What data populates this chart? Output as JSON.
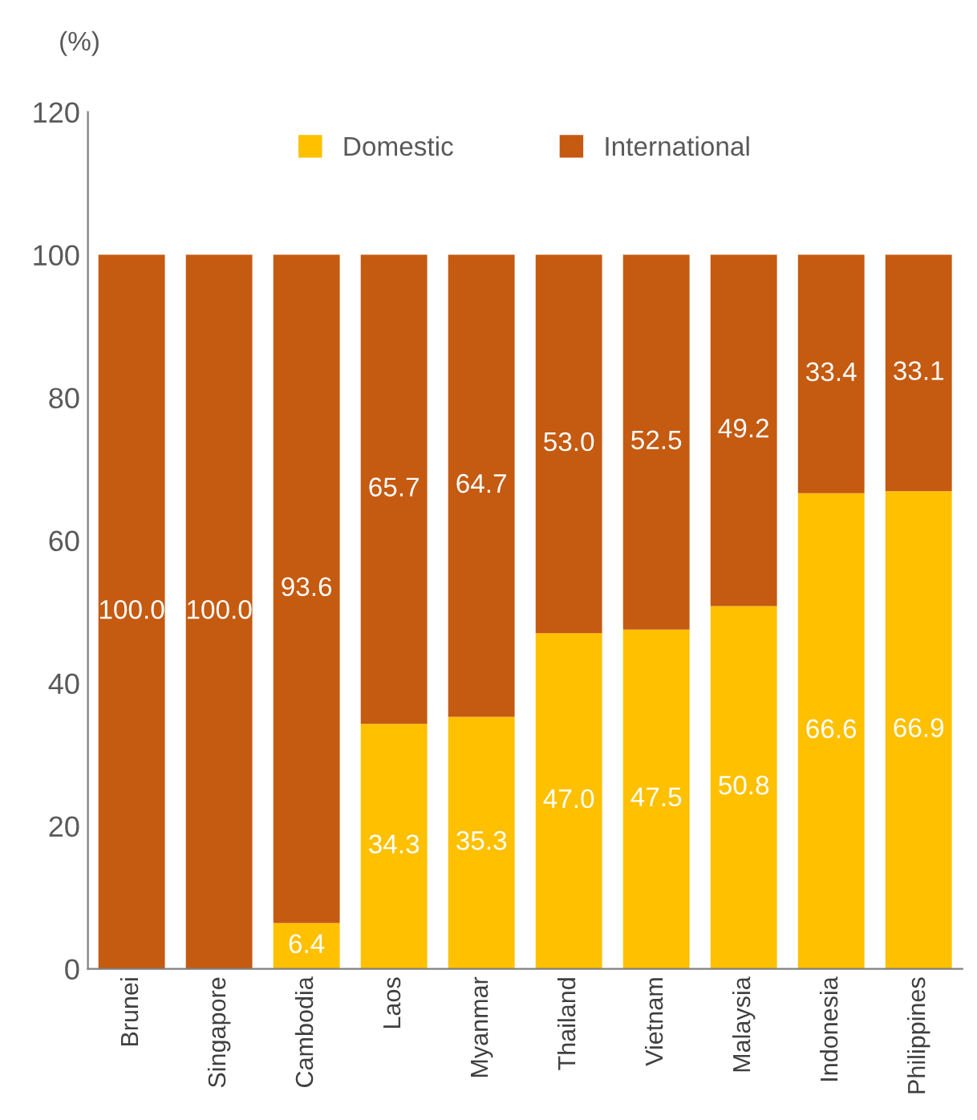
{
  "chart_data": {
    "type": "bar",
    "stacked": true,
    "ylabel": "(%)",
    "categories": [
      "Brunei",
      "Singapore",
      "Cambodia",
      "Laos",
      "Myanmar",
      "Thailand",
      "Vietnam",
      "Malaysia",
      "Indonesia",
      "Philippines"
    ],
    "series": [
      {
        "name": "Domestic",
        "color": "#ffc000",
        "values": [
          0,
          0,
          6.4,
          34.3,
          35.3,
          47.0,
          47.5,
          50.8,
          66.6,
          66.9
        ],
        "value_labels": [
          null,
          null,
          "6.4",
          "34.3",
          "35.3",
          "47.0",
          "47.5",
          "50.8",
          "66.6",
          "66.9"
        ]
      },
      {
        "name": "International",
        "color": "#c55a11",
        "values": [
          100,
          100,
          93.6,
          65.7,
          64.7,
          53.0,
          52.5,
          49.2,
          33.4,
          33.1
        ],
        "value_labels": [
          "100.0",
          "100.0",
          "93.6",
          "65.7",
          "64.7",
          "53.0",
          "52.5",
          "49.2",
          "33.4",
          "33.1"
        ]
      }
    ],
    "ylim": [
      0,
      120
    ],
    "yticks": [
      0,
      20,
      40,
      60,
      80,
      100,
      120
    ],
    "grid": false,
    "legend": "top"
  }
}
